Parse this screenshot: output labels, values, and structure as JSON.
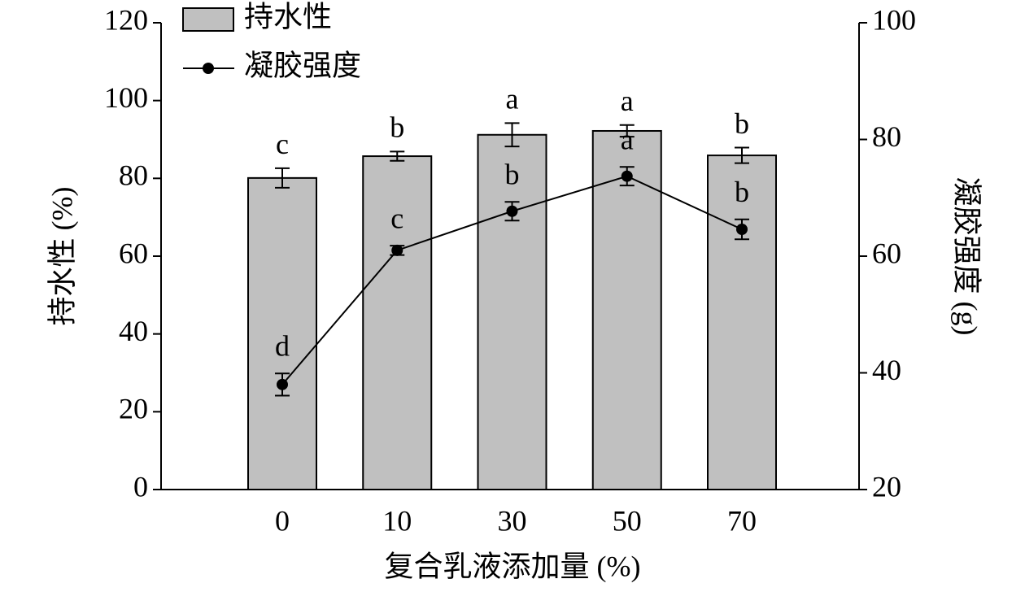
{
  "chart_data": {
    "type": "combo",
    "x_label": "复合乳液添加量 (%)",
    "y_label": "持水性 (%)",
    "y2_label": "凝胶强度 (g)",
    "categories": [
      "0",
      "10",
      "30",
      "50",
      "70"
    ],
    "ylim": [
      0,
      120
    ],
    "yticks": [
      0,
      20,
      40,
      60,
      80,
      100,
      120
    ],
    "y2lim": [
      20,
      100
    ],
    "y2ticks": [
      20,
      40,
      60,
      80,
      100
    ],
    "legend": "upper-left",
    "series": [
      {
        "name": "持水性",
        "type": "bar",
        "color": "#c0c0c0",
        "values": [
          80.1,
          85.7,
          91.2,
          92.2,
          85.9
        ],
        "errors": [
          2.5,
          1.2,
          3.0,
          1.5,
          2.0
        ],
        "significance": [
          "c",
          "b",
          "a",
          "a",
          "b"
        ]
      },
      {
        "name": "凝胶强度",
        "type": "line",
        "axis": "y2",
        "color": "#000000",
        "values": [
          38.0,
          61.0,
          67.7,
          73.7,
          64.6
        ],
        "errors": [
          1.9,
          0.8,
          1.6,
          1.6,
          1.7
        ],
        "significance": [
          "d",
          "c",
          "b",
          "a",
          "b"
        ]
      }
    ]
  }
}
